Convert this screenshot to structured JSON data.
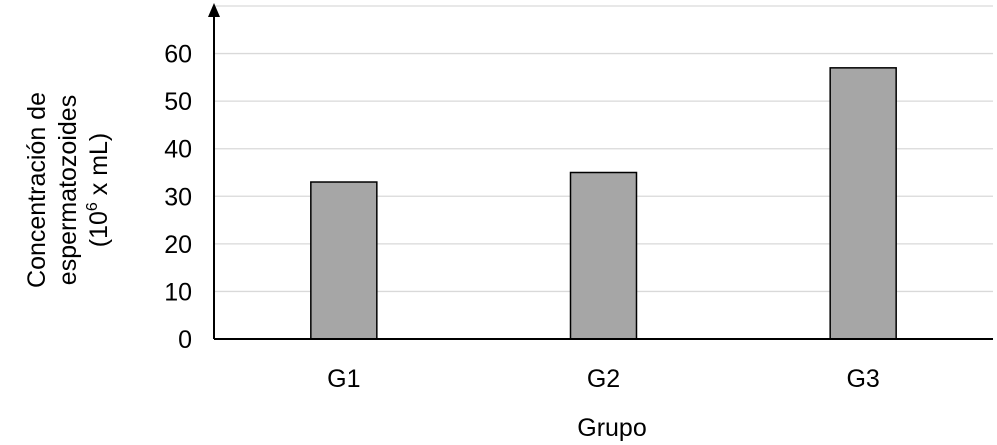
{
  "chart_data": {
    "type": "bar",
    "categories": [
      "G1",
      "G2",
      "G3"
    ],
    "values": [
      33,
      35,
      57
    ],
    "xlabel": "Grupo",
    "ylabel_lines": [
      "Concentración de",
      "espermatozoides"
    ],
    "ylabel_unit": {
      "open": "(10",
      "superscript": "6",
      "close": " x mL)"
    },
    "ylim": [
      0,
      70
    ],
    "yticks": [
      0,
      10,
      20,
      30,
      40,
      50,
      60
    ],
    "grid": true,
    "bar_color": "#a6a6a6",
    "bar_edge_color": "#000000",
    "grid_color": "#d9d9d9",
    "axis_color": "#000000"
  }
}
